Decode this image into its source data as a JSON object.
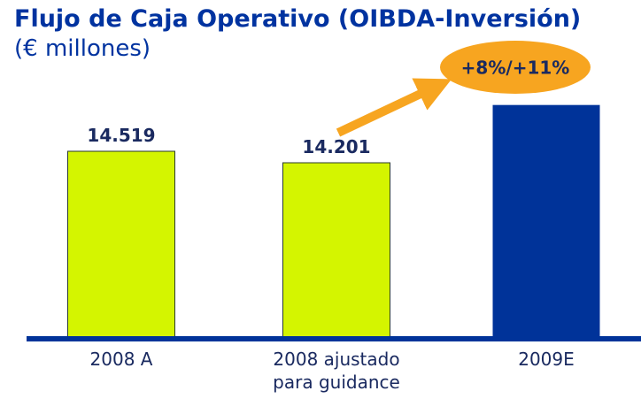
{
  "chart_data": {
    "type": "bar",
    "title": "Flujo de Caja Operativo (OIBDA-Inversión)",
    "subtitle": "(€ millones)",
    "annotation": "+8%/+11%",
    "categories": [
      "2008 A",
      "2008 ajustado para guidance",
      "2009E"
    ],
    "values": [
      14519,
      14201,
      15800
    ],
    "value_labels": [
      "14.519",
      "14.201",
      null
    ],
    "colors": [
      "#d4f500",
      "#d4f500",
      "#003399"
    ],
    "ylim": [
      9330,
      16000
    ]
  }
}
